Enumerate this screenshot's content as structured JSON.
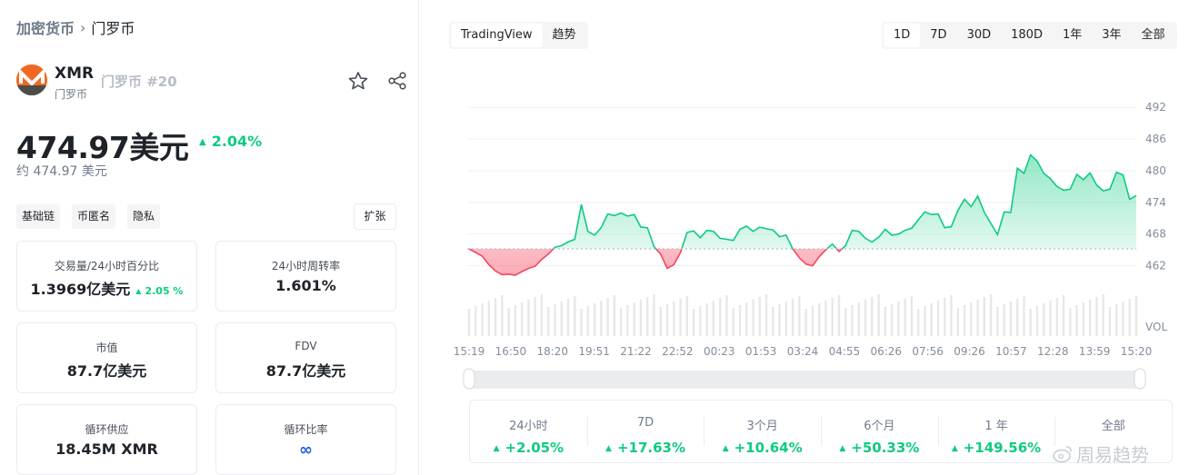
{
  "breadcrumb": {
    "root": "加密货币",
    "current": "门罗币"
  },
  "coin": {
    "symbol": "XMR",
    "name": "门罗币",
    "rank": "门罗币 #20"
  },
  "price": {
    "value": "474.97美元",
    "change": "2.04%",
    "approx": "约 474.97 美元"
  },
  "tags": [
    "基础链",
    "币匿名",
    "隐私"
  ],
  "expand_label": "扩张",
  "cards": {
    "volume": {
      "label": "交易量/24小时百分比",
      "value": "1.3969亿美元",
      "pct": "2.05 %"
    },
    "turnover": {
      "label": "24小时周转率",
      "value": "1.601%"
    },
    "mcap": {
      "label": "市值",
      "value": "87.7亿美元"
    },
    "fdv": {
      "label": "FDV",
      "value": "87.7亿美元"
    },
    "supply": {
      "label": "循环供应",
      "value": "18.45M XMR"
    },
    "ratio": {
      "label": "循环比率",
      "value": "∞"
    }
  },
  "chart_tabs": [
    "TradingView",
    "趋势"
  ],
  "ranges": [
    "1D",
    "7D",
    "30D",
    "180D",
    "1年",
    "3年",
    "全部"
  ],
  "colors": {
    "up": "#0ecb81",
    "down": "#f6465d",
    "brand": "#f26822"
  },
  "icons": [
    "monero-logo-icon",
    "star-icon",
    "share-icon",
    "sort-up-icon"
  ],
  "chart_data": {
    "type": "area",
    "y_ticks": [
      "492",
      "486",
      "480",
      "474",
      "468",
      "462"
    ],
    "vol_label": "VOL",
    "x_ticks": [
      "15:19",
      "16:50",
      "18:20",
      "19:51",
      "21:22",
      "22:52",
      "00:23",
      "01:53",
      "03:24",
      "04:55",
      "06:26",
      "07:56",
      "09:26",
      "10:57",
      "12:28",
      "13:59",
      "15:20"
    ],
    "ylim": [
      459,
      496
    ],
    "baseline": 465.2,
    "series": [
      {
        "values": [
          465.2,
          464.5,
          463.8,
          462.2,
          461.0,
          460.3,
          460.4,
          460.2,
          460.9,
          461.5,
          461.9,
          463.2,
          464.2,
          465.5,
          465.8,
          466.5,
          467.0,
          473.6,
          468.5,
          467.8,
          469.2,
          471.8,
          471.5,
          472.0,
          471.4,
          471.7,
          469.3,
          469.2,
          465.6,
          464.2,
          461.5,
          462.2,
          464.5,
          468.3,
          468.6,
          467.3,
          468.7,
          468.5,
          467.2,
          467.0,
          466.8,
          468.9,
          469.5,
          468.5,
          469.3,
          469.0,
          468.8,
          467.5,
          467.8,
          465.2,
          463.5,
          462.3,
          462.0,
          463.7,
          465.0,
          466.1,
          464.7,
          465.8,
          468.7,
          468.5,
          467.2,
          466.5,
          467.4,
          468.9,
          467.8,
          468.0,
          468.7,
          469.1,
          470.7,
          472.2,
          471.7,
          471.8,
          469.2,
          469.4,
          472.5,
          474.6,
          473.2,
          475.2,
          472.1,
          470.0,
          467.9,
          472.2,
          472.1,
          480.5,
          479.5,
          483.0,
          481.8,
          479.5,
          478.5,
          477.0,
          476.3,
          476.5,
          479.3,
          478.3,
          479.6,
          477.3,
          476.2,
          476.5,
          479.7,
          479.2,
          474.6,
          475.3
        ]
      }
    ]
  },
  "stats": [
    {
      "label": "24小时",
      "value": "+2.05%"
    },
    {
      "label": "7D",
      "value": "+17.63%"
    },
    {
      "label": "3个月",
      "value": "+10.64%"
    },
    {
      "label": "6个月",
      "value": "+50.33%"
    },
    {
      "label": "1 年",
      "value": "+149.56%"
    },
    {
      "label": "全部",
      "value": ""
    }
  ],
  "watermark": "周易趋势"
}
